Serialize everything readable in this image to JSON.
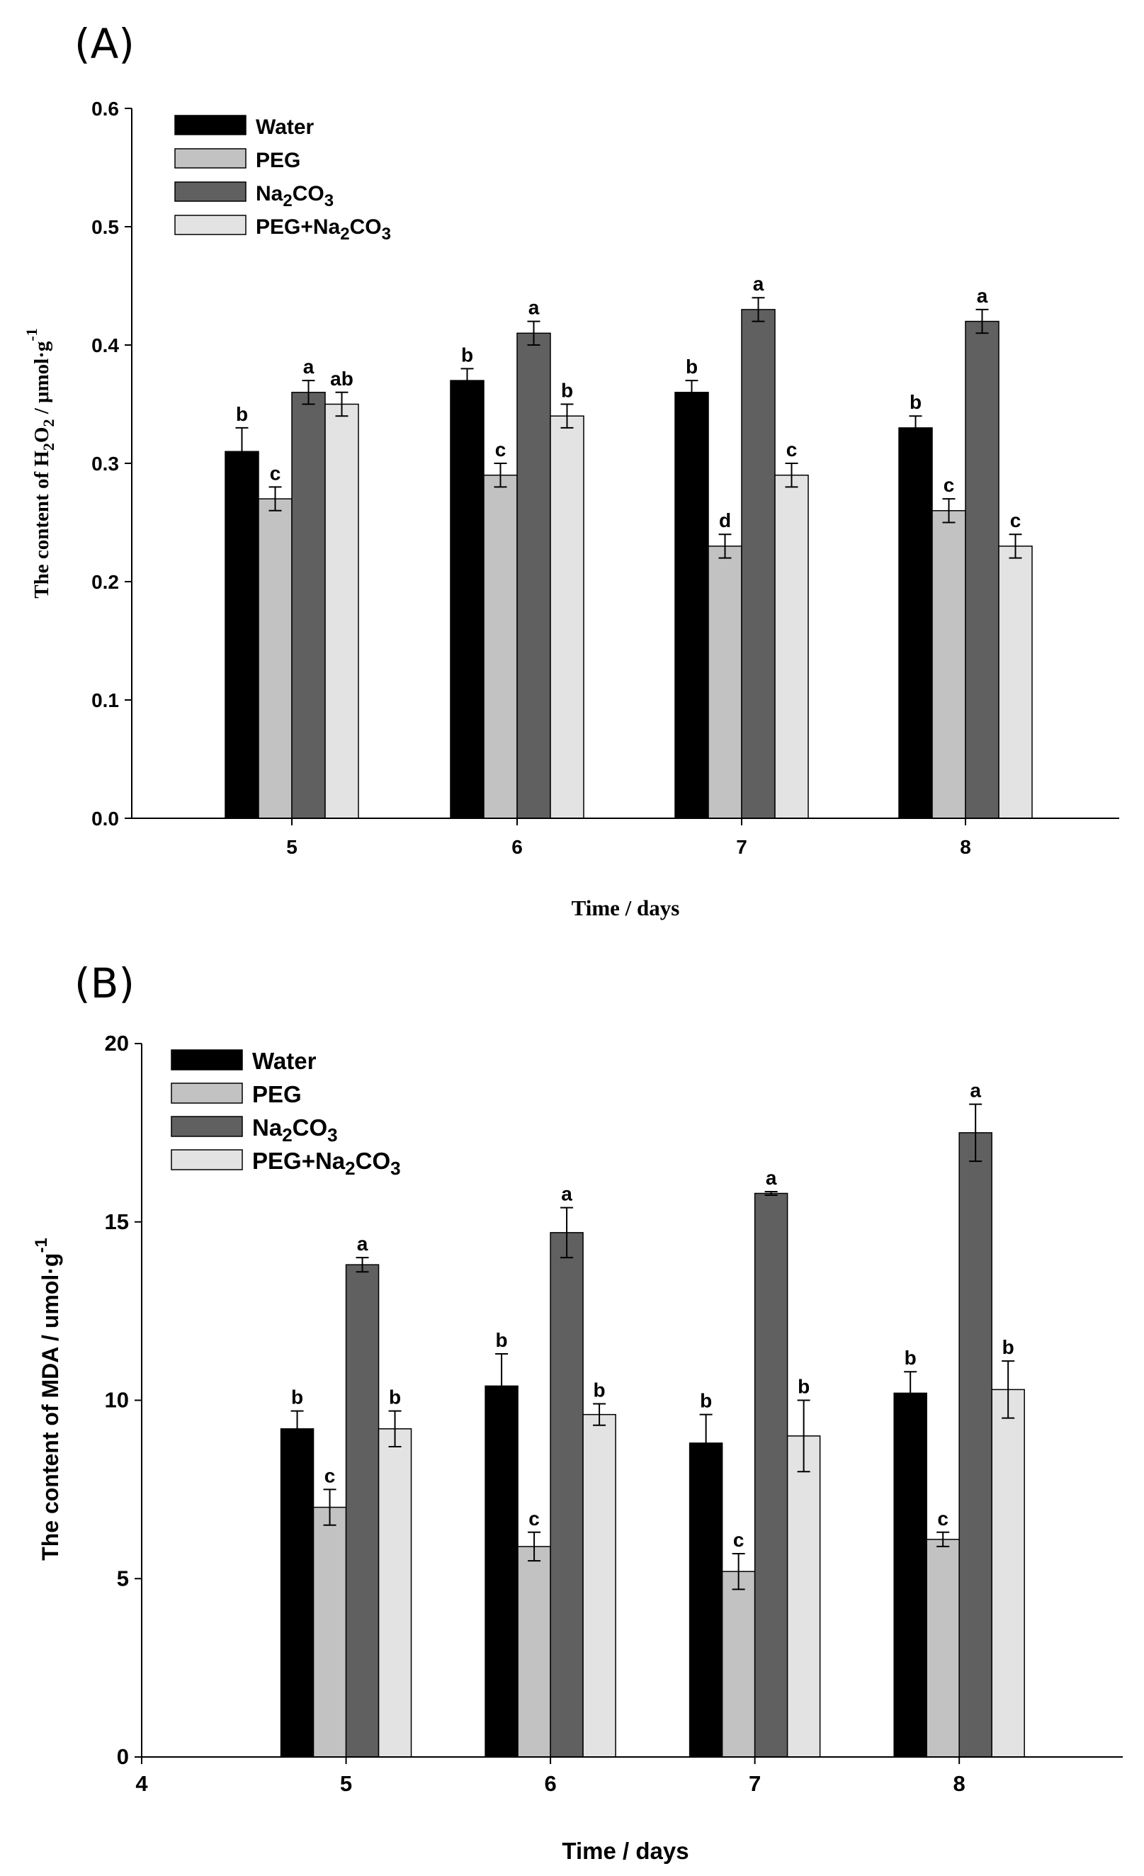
{
  "series_colors": [
    "#000000",
    "#c2c2c2",
    "#606060",
    "#e3e3e3"
  ],
  "chart_data": [
    {
      "type": "bar",
      "panel_label": "(A)",
      "title": "",
      "xlabel": "Time / days",
      "ylabel": "The content of H2O2 / μmol·g-1",
      "ylabel_parts": [
        "The content of H",
        "2",
        "O",
        "2",
        " / μmol·g",
        "-1"
      ],
      "categories": [
        "5",
        "6",
        "7",
        "8"
      ],
      "ylim": [
        0.0,
        0.6
      ],
      "yticks": [
        0.0,
        0.1,
        0.2,
        0.3,
        0.4,
        0.5,
        0.6
      ],
      "ytick_labels": [
        "0.0",
        "0.1",
        "0.2",
        "0.3",
        "0.4",
        "0.5",
        "0.6"
      ],
      "grid": false,
      "legend_position": "top-left",
      "series": [
        {
          "name": "Water",
          "name_parts": [
            "Water"
          ],
          "values": [
            0.31,
            0.37,
            0.36,
            0.33
          ],
          "errors": [
            0.02,
            0.01,
            0.01,
            0.01
          ],
          "letters": [
            "b",
            "b",
            "b",
            "b"
          ]
        },
        {
          "name": "PEG",
          "name_parts": [
            "PEG"
          ],
          "values": [
            0.27,
            0.29,
            0.23,
            0.26
          ],
          "errors": [
            0.01,
            0.01,
            0.01,
            0.01
          ],
          "letters": [
            "c",
            "c",
            "d",
            "c"
          ]
        },
        {
          "name": "Na2CO3",
          "name_parts": [
            "Na",
            "2",
            "CO",
            "3"
          ],
          "values": [
            0.36,
            0.41,
            0.43,
            0.42
          ],
          "errors": [
            0.01,
            0.01,
            0.01,
            0.01
          ],
          "letters": [
            "a",
            "a",
            "a",
            "a"
          ]
        },
        {
          "name": "PEG+Na2CO3",
          "name_parts": [
            "PEG+Na",
            "2",
            "CO",
            "3"
          ],
          "values": [
            0.35,
            0.34,
            0.29,
            0.23
          ],
          "errors": [
            0.01,
            0.01,
            0.01,
            0.01
          ],
          "letters": [
            "ab",
            "b",
            "c",
            "c"
          ]
        }
      ]
    },
    {
      "type": "bar",
      "panel_label": "(B)",
      "title": "",
      "xlabel": "Time / days",
      "ylabel": "The content of MDA / umol·g-1",
      "ylabel_parts": [
        "The content of MDA / umol·g",
        "-1"
      ],
      "categories": [
        "5",
        "6",
        "7",
        "8"
      ],
      "xlim": [
        4,
        8.8
      ],
      "xticks": [
        4,
        5,
        6,
        7,
        8
      ],
      "xtick_labels": [
        "4",
        "5",
        "6",
        "7",
        "8"
      ],
      "ylim": [
        0,
        20
      ],
      "yticks": [
        0,
        5,
        10,
        15,
        20
      ],
      "ytick_labels": [
        "0",
        "5",
        "10",
        "15",
        "20"
      ],
      "grid": false,
      "legend_position": "top-left",
      "series": [
        {
          "name": "Water",
          "name_parts": [
            "Water"
          ],
          "values": [
            9.2,
            10.4,
            8.8,
            10.2
          ],
          "errors": [
            0.5,
            0.9,
            0.8,
            0.6
          ],
          "letters": [
            "b",
            "b",
            "b",
            "b"
          ]
        },
        {
          "name": "PEG",
          "name_parts": [
            "PEG"
          ],
          "values": [
            7.0,
            5.9,
            5.2,
            6.1
          ],
          "errors": [
            0.5,
            0.4,
            0.5,
            0.2
          ],
          "letters": [
            "c",
            "c",
            "c",
            "c"
          ]
        },
        {
          "name": "Na2CO3",
          "name_parts": [
            "Na",
            "2",
            "CO",
            "3"
          ],
          "values": [
            13.8,
            14.7,
            15.8,
            17.5
          ],
          "errors": [
            0.2,
            0.7,
            0.05,
            0.8
          ],
          "letters": [
            "a",
            "a",
            "a",
            "a"
          ]
        },
        {
          "name": "PEG+Na2CO3",
          "name_parts": [
            "PEG+Na",
            "2",
            "CO",
            "3"
          ],
          "values": [
            9.2,
            9.6,
            9.0,
            10.3
          ],
          "errors": [
            0.5,
            0.3,
            1.0,
            0.8
          ],
          "letters": [
            "b",
            "b",
            "b",
            "b"
          ]
        }
      ]
    }
  ]
}
